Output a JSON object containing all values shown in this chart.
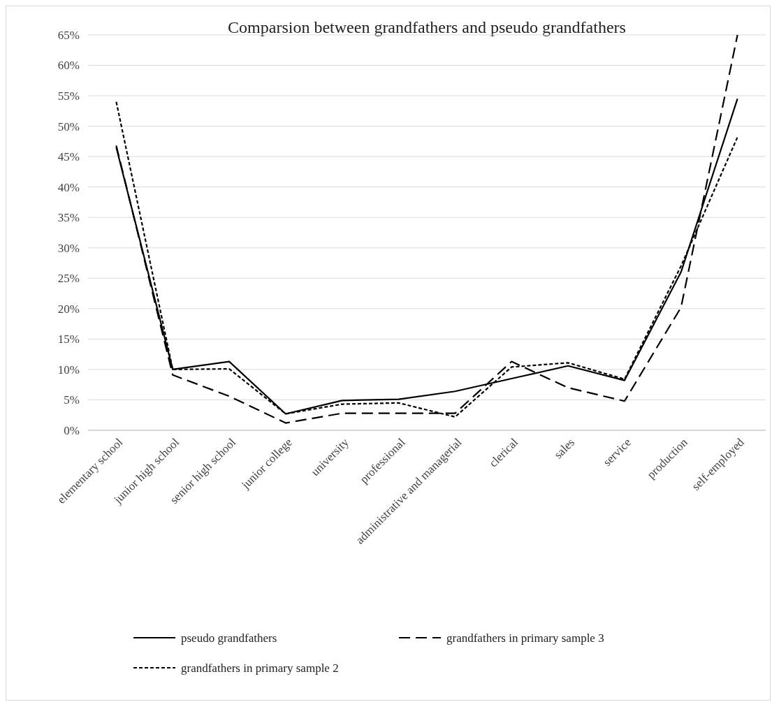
{
  "chart_data": {
    "type": "line",
    "title": "Comparsion between grandfathers and pseudo grandfathers",
    "categories": [
      "elementary school",
      "junior high school",
      "senior high school",
      "junior college",
      "university",
      "professional",
      "administrative and managerial",
      "clerical",
      "sales",
      "service",
      "production",
      "self-employed"
    ],
    "series": [
      {
        "name": "pseudo grandfathers",
        "color": "#000000",
        "line_style": "solid",
        "values": [
          46.5,
          10,
          11.3,
          2.7,
          4.9,
          5.1,
          6.4,
          8.5,
          10.6,
          8.2,
          26,
          54.5
        ]
      },
      {
        "name": "grandfathers in primary sample 3",
        "color": "#000000",
        "line_style": "dashed",
        "values": [
          46.8,
          9.1,
          5.6,
          1.2,
          2.8,
          2.8,
          2.8,
          11.3,
          7.0,
          4.8,
          20.2,
          65
        ]
      },
      {
        "name": "grandfathers in primary sample 2",
        "color": "#000000",
        "line_style": "dotted",
        "values": [
          54,
          10,
          10.1,
          2.7,
          4.3,
          4.5,
          2.2,
          10.4,
          11.1,
          8.4,
          27,
          48.2
        ]
      }
    ],
    "ylim": [
      0,
      65
    ],
    "yticks": [
      {
        "value": 0,
        "label": "0%"
      },
      {
        "value": 5,
        "label": "5%"
      },
      {
        "value": 10,
        "label": "10%"
      },
      {
        "value": 15,
        "label": "15%"
      },
      {
        "value": 20,
        "label": "20%"
      },
      {
        "value": 25,
        "label": "25%"
      },
      {
        "value": 30,
        "label": "30%"
      },
      {
        "value": 35,
        "label": "35%"
      },
      {
        "value": 40,
        "label": "40%"
      },
      {
        "value": 45,
        "label": "45%"
      },
      {
        "value": 50,
        "label": "50%"
      },
      {
        "value": 55,
        "label": "55%"
      },
      {
        "value": 60,
        "label": "60%"
      },
      {
        "value": 65,
        "label": "65%"
      }
    ],
    "grid": "y",
    "legend": "bottom",
    "marker": "none"
  }
}
